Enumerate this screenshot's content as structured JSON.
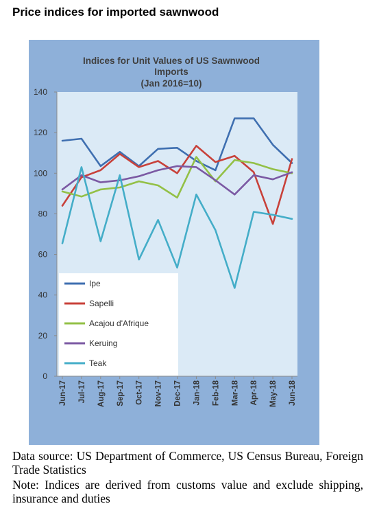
{
  "page": {
    "heading": "Price indices for imported sawnwood",
    "source_line": "Data source: US Department of Commerce, US Census Bureau, Foreign Trade Statistics",
    "note_line": "Note: Indices are derived from customs value and exclude shipping, insurance and duties"
  },
  "chart_data": {
    "type": "line",
    "title": "Indices for Unit Values of US Sawnwood Imports",
    "subtitle": "(Jan 2016=10)",
    "xlabel": "",
    "ylabel": "",
    "ylim": [
      0,
      140
    ],
    "yticks": [
      0,
      20,
      40,
      60,
      80,
      100,
      120,
      140
    ],
    "grid": false,
    "legend_position": "bottom-left",
    "categories": [
      "Jun-17",
      "Jul-17",
      "Aug-17",
      "Sep-17",
      "Oct-17",
      "Nov-17",
      "Dec-17",
      "Jan-18",
      "Feb-18",
      "Mar-18",
      "Apr-18",
      "May-18",
      "Jun-18"
    ],
    "series": [
      {
        "name": "Ipe",
        "color": "#3f6fb0",
        "values": [
          116,
          117,
          103.5,
          110.5,
          103.5,
          112,
          112.5,
          106,
          101.5,
          127,
          127,
          114,
          105
        ]
      },
      {
        "name": "Sapelli",
        "color": "#c8413a",
        "values": [
          84,
          98,
          101.5,
          109.5,
          103,
          106,
          100,
          113.5,
          105.5,
          108.5,
          100.5,
          75,
          107
        ]
      },
      {
        "name": "Acajou d'Afrique",
        "color": "#93c046",
        "values": [
          91,
          88.5,
          92,
          93,
          96,
          94,
          88,
          108,
          96,
          106.5,
          105,
          102,
          100
        ]
      },
      {
        "name": "Keruing",
        "color": "#7b59a3",
        "values": [
          92,
          99,
          95.5,
          96.5,
          98.5,
          101.5,
          103.5,
          103,
          96.5,
          89.5,
          99,
          97,
          100.5
        ]
      },
      {
        "name": "Teak",
        "color": "#44adc8",
        "values": [
          65.5,
          103,
          66.5,
          99,
          57.5,
          77,
          53.5,
          89.5,
          72,
          43.5,
          81,
          79.5,
          77.5
        ]
      }
    ]
  }
}
